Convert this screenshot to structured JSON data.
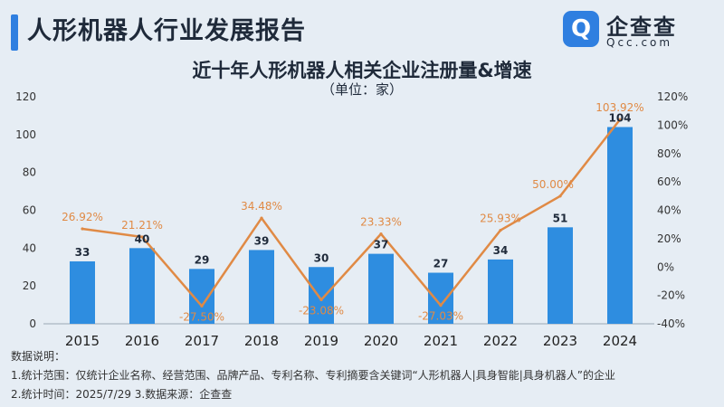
{
  "header": {
    "title": "人形机器人行业发展报告"
  },
  "brand": {
    "icon_name": "qcc-logo-icon",
    "icon_glyph": "Q",
    "name": "企查查",
    "domain": "Qcc.com",
    "color": "#2f7fe0"
  },
  "notes": {
    "heading": "数据说明：",
    "line1": "1.统计范围：仅统计企业名称、经营范围、品牌产品、专利名称、专利摘要含关键词“人形机器人|具身智能|具身机器人”的企业",
    "line2": "2.统计时间：2025/7/29  3.数据来源：企查查"
  },
  "chart_data": {
    "type": "bar",
    "title": "近十年人形机器人相关企业注册量&增速",
    "subtitle": "（单位：家）",
    "categories": [
      "2015",
      "2016",
      "2017",
      "2018",
      "2019",
      "2020",
      "2021",
      "2022",
      "2023",
      "2024"
    ],
    "bar_values": [
      33,
      40,
      29,
      39,
      30,
      37,
      27,
      34,
      51,
      104
    ],
    "bar_labels": [
      "33",
      "40",
      "29",
      "39",
      "30",
      "37",
      "27",
      "34",
      "51",
      "104"
    ],
    "line_values": [
      26.92,
      21.21,
      -27.5,
      34.48,
      -23.08,
      23.33,
      -27.03,
      25.93,
      50.0,
      103.92
    ],
    "line_labels": [
      "26.92%",
      "21.21%",
      "-27.50%",
      "34.48%",
      "-23.08%",
      "23.33%",
      "-27.03%",
      "25.93%",
      "50.00%",
      "103.92%"
    ],
    "left_axis": {
      "ylim": [
        0,
        120
      ],
      "ticks": [
        "0",
        "20",
        "40",
        "60",
        "80",
        "100",
        "120"
      ]
    },
    "right_axis": {
      "ylim": [
        -40,
        120
      ],
      "ticks": [
        "-40%",
        "-20%",
        "0%",
        "20%",
        "40%",
        "60%",
        "80%",
        "100%",
        "120%"
      ]
    },
    "bar_color": "#2e8de0",
    "line_color": "#e08a45",
    "grid": false
  }
}
